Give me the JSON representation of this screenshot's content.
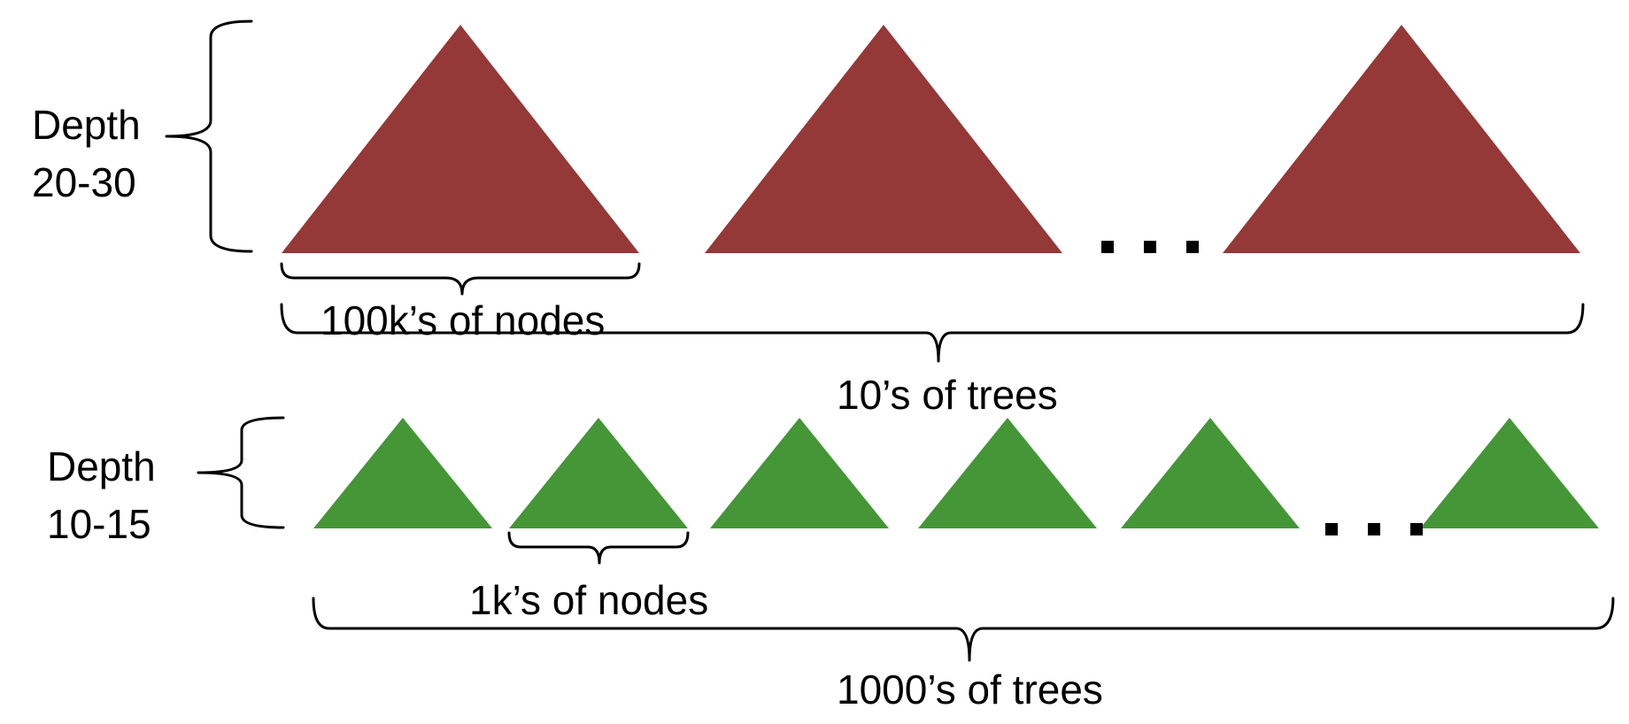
{
  "colors": {
    "large_tree": "#943838",
    "small_tree": "#449637",
    "ink": "#000000"
  },
  "large_trees": {
    "depth_label_line1": "Depth",
    "depth_label_line2": "20-30",
    "nodes_label": "100k’s of nodes",
    "count_label": "10’s of trees"
  },
  "small_trees": {
    "depth_label_line1": "Depth",
    "depth_label_line2": "10-15",
    "nodes_label": "1k’s of nodes",
    "count_label": "1000’s of trees"
  }
}
